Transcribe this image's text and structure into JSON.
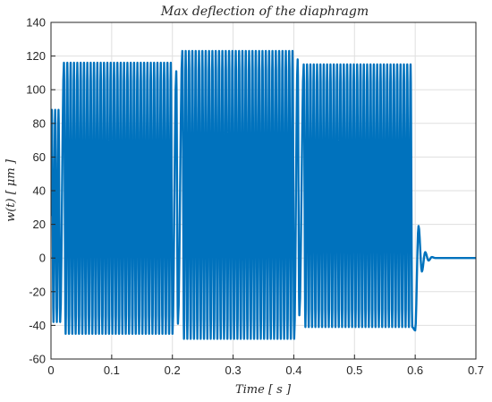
{
  "chart_data": {
    "type": "line",
    "title": "Max deflection of the diaphragm",
    "xlabel": "Time [ s ]",
    "ylabel": "w(t) [ μm ]",
    "xlim": [
      0,
      0.7
    ],
    "ylim": [
      -60,
      140
    ],
    "xticks": [
      "0",
      "0.1",
      "0.2",
      "0.3",
      "0.4",
      "0.5",
      "0.6",
      "0.7"
    ],
    "yticks": [
      "-60",
      "-40",
      "-20",
      "0",
      "20",
      "40",
      "60",
      "80",
      "100",
      "120",
      "140"
    ],
    "grid": true,
    "legend": "none",
    "series": [
      {
        "color": "#0072BD",
        "segments": [
          {
            "t_start": 0.0,
            "t_end": 0.02,
            "max": 88,
            "min": -38,
            "oscillation_period": 0.0055
          },
          {
            "t_start": 0.02,
            "t_end": 0.205,
            "max": 116,
            "min": -45,
            "oscillation_period": 0.0055
          },
          {
            "t_start": 0.205,
            "t_end": 0.215,
            "max": 111,
            "min": -39,
            "oscillation_period": 0.0055
          },
          {
            "t_start": 0.215,
            "t_end": 0.405,
            "max": 123,
            "min": -48,
            "oscillation_period": 0.0055
          },
          {
            "t_start": 0.405,
            "t_end": 0.415,
            "max": 118,
            "min": -34,
            "oscillation_period": 0.0055
          },
          {
            "t_start": 0.415,
            "t_end": 0.6,
            "max": 115,
            "min": -41,
            "oscillation_period": 0.0055
          }
        ],
        "decay": {
          "t_start": 0.6,
          "values": [
            -43,
            19,
            -8,
            3.5,
            -1.5,
            0.6,
            0
          ],
          "step": 0.0055
        },
        "final_value": 0,
        "t_final": 0.7
      }
    ]
  }
}
